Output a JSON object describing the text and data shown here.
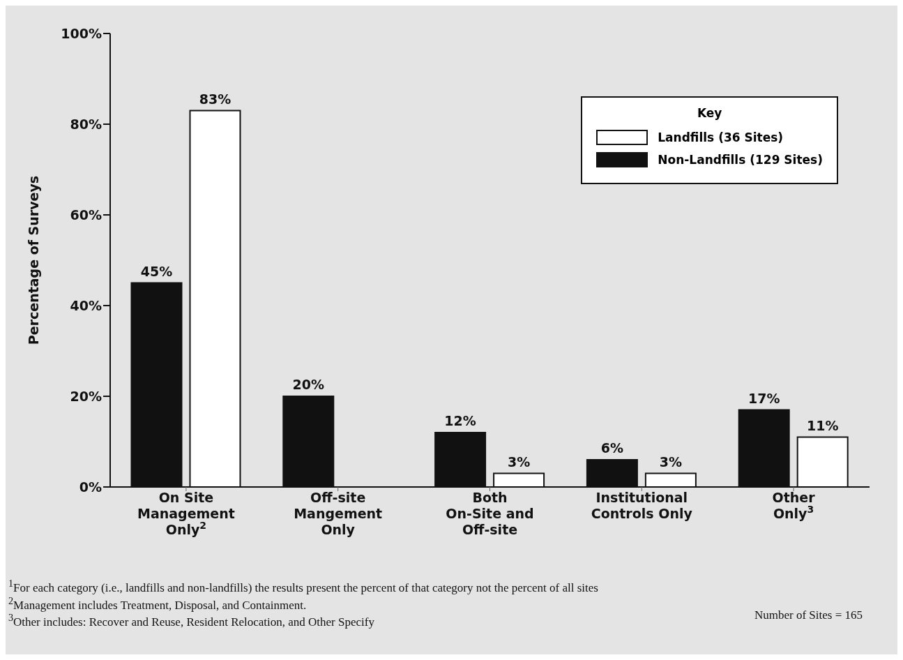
{
  "chart_data": {
    "type": "bar",
    "ylabel": "Percentage of Surveys",
    "legend_title": "Key",
    "legend": "top right",
    "grid": false,
    "categories": [
      "On Site\nManagement\nOnly$^{2}$",
      "Off-site\nMangement\nOnly",
      "Both\nOn-Site and\nOff-site",
      "Institutional\nControls Only",
      "Other\nOnly$^{3}$"
    ],
    "series": [
      {
        "name": "Non-Landfills (129 Sites)",
        "color": "#111111",
        "values": [
          45,
          20,
          12,
          6,
          17
        ],
        "value_labels": [
          "45%",
          "20%",
          "12%",
          "6%",
          "17%"
        ]
      },
      {
        "name": "Landfills (36 Sites)",
        "color": "#ffffff",
        "values": [
          83,
          null,
          3,
          3,
          11
        ],
        "value_labels": [
          "83%",
          null,
          "3%",
          "3%",
          "11%"
        ]
      }
    ],
    "ylim": [
      0,
      100
    ],
    "yticks": [
      {
        "value": 0,
        "label": "0%"
      },
      {
        "value": 20,
        "label": "20%"
      },
      {
        "value": 40,
        "label": "40%"
      },
      {
        "value": 60,
        "label": "60%"
      },
      {
        "value": 80,
        "label": "80%"
      },
      {
        "value": 100,
        "label": "100%"
      }
    ],
    "annotations": [
      "$^{1}$For each category (i.e., landfills and non-landfills) the results present the percent of that category not the percent of all sites",
      "$^{2}$Management includes Treatment, Disposal, and Containment.",
      "$^{3}$Other includes: Recover and Reuse, Resident Relocation, and Other Specify",
      "Number of Sites = 165"
    ]
  }
}
